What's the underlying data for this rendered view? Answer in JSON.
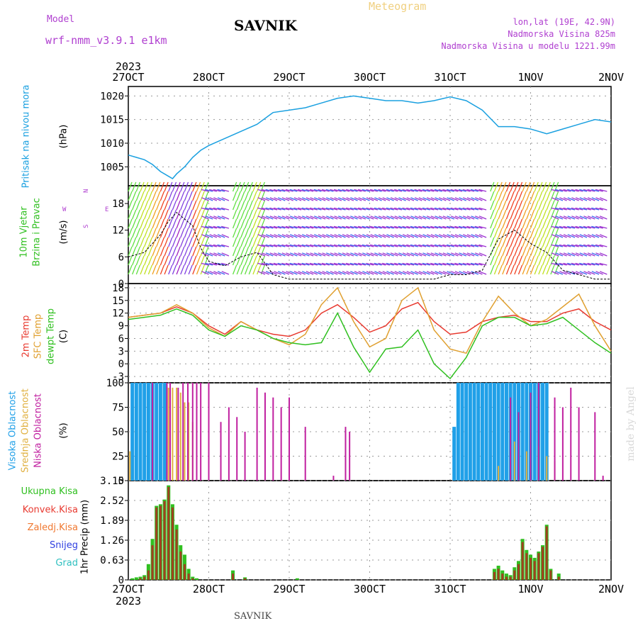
{
  "header": {
    "model_label": "Model",
    "model_name": "wrf-nmm_v3.9.1 e1km",
    "station": "SAVNIK",
    "meteogram": "Meteogram",
    "lonlat": "lon,lat (19E, 42.9N)",
    "altitude": "Nadmorska Visina 825m",
    "model_altitude": "Nadmorska Visina u modelu 1221.99m",
    "year_top": "2023",
    "year_bottom": "2023",
    "footer": "SAVNIK",
    "watermark": "made by Angel"
  },
  "colors": {
    "pressure": "#1aa0e0",
    "temp2m": "#e83a30",
    "sfc": "#e0a030",
    "dewpt": "#30c020",
    "high_cloud": "#20a0e8",
    "mid_cloud": "#e0b040",
    "low_cloud": "#c020a0",
    "precip_total": "#30c020",
    "precip_conv": "#a04020"
  },
  "chart_data": [
    {
      "type": "line",
      "panel": "pressure",
      "ylabel": [
        "Pritisak na nivou mora",
        "(hPa)"
      ],
      "x_ticks": [
        "27OCT",
        "28OCT",
        "29OCT",
        "30OCT",
        "31OCT",
        "1NOV",
        "2NOV"
      ],
      "ylim": [
        1001,
        1022
      ],
      "y_ticks": [
        "1005",
        "1010",
        "1015",
        "1020"
      ],
      "x_days": [
        0,
        0.1,
        0.2,
        0.3,
        0.4,
        0.5,
        0.55,
        0.6,
        0.7,
        0.8,
        0.9,
        1.0,
        1.2,
        1.4,
        1.6,
        1.8,
        2.0,
        2.2,
        2.4,
        2.6,
        2.8,
        3.0,
        3.2,
        3.4,
        3.6,
        3.8,
        4.0,
        4.2,
        4.4,
        4.6,
        4.8,
        5.0,
        5.1,
        5.2,
        5.4,
        5.6,
        5.8,
        6.0
      ],
      "series": [
        {
          "values": [
            1007.5,
            1007,
            1006.5,
            1005.5,
            1004,
            1003,
            1002.5,
            1003.5,
            1005,
            1007,
            1008.5,
            1009.5,
            1011,
            1012.5,
            1014,
            1016.5,
            1017,
            1017.5,
            1018.5,
            1019.5,
            1020,
            1019.5,
            1019,
            1019,
            1018.5,
            1019,
            1019.8,
            1019,
            1017,
            1013.5,
            1013.5,
            1013,
            1012.5,
            1012,
            1013,
            1014,
            1015,
            1014.5
          ]
        }
      ],
      "grid": true
    },
    {
      "type": "line",
      "panel": "wind",
      "ylabel": [
        "10m Vjetar",
        "Brzina i Pravac",
        "(m/s)"
      ],
      "compass": {
        "n": "N",
        "e": "E",
        "w": "W",
        "s": "S"
      },
      "ylim": [
        0,
        22
      ],
      "y_ticks": [
        "0",
        "6",
        "12",
        "18"
      ],
      "x_days": [
        0,
        0.2,
        0.4,
        0.5,
        0.6,
        0.8,
        0.9,
        1.0,
        1.2,
        1.4,
        1.6,
        1.8,
        2.0,
        2.2,
        2.4,
        2.6,
        2.8,
        3.0,
        3.2,
        3.4,
        3.6,
        3.8,
        4.0,
        4.2,
        4.4,
        4.6,
        4.8,
        5.0,
        5.2,
        5.4,
        5.6,
        5.8,
        6.0
      ],
      "series": [
        {
          "values": [
            6,
            7,
            11,
            14,
            16,
            13,
            8,
            5,
            4,
            6,
            7,
            2,
            1,
            1,
            1,
            1,
            1,
            1,
            1,
            1,
            1,
            1,
            2,
            2,
            3,
            10,
            12,
            9,
            7,
            3,
            2,
            1,
            1
          ]
        }
      ],
      "grid": true
    },
    {
      "type": "line",
      "panel": "temperature",
      "ylabel": [
        "2m Temp",
        "SFC Temp",
        "dewpt Temp",
        "(C)"
      ],
      "ylim": [
        -4.5,
        19
      ],
      "y_ticks": [
        "-3",
        "0",
        "3",
        "6",
        "9",
        "12",
        "15",
        "18"
      ],
      "x_days": [
        0,
        0.2,
        0.4,
        0.6,
        0.8,
        1.0,
        1.2,
        1.4,
        1.6,
        1.8,
        2.0,
        2.2,
        2.4,
        2.6,
        2.8,
        3.0,
        3.2,
        3.4,
        3.6,
        3.8,
        4.0,
        4.2,
        4.4,
        4.6,
        4.8,
        5.0,
        5.2,
        5.4,
        5.6,
        5.8,
        6.0
      ],
      "series": [
        {
          "name": "2m Temp",
          "values": [
            11,
            11.5,
            12,
            13.5,
            12,
            9,
            7,
            10,
            8,
            7,
            6.5,
            8,
            12,
            14,
            11,
            7.5,
            9,
            13,
            14.5,
            10,
            7,
            7.5,
            10,
            11,
            11.5,
            10,
            10,
            12,
            13,
            10,
            8
          ]
        },
        {
          "name": "SFC Temp",
          "values": [
            11,
            11.5,
            12,
            14,
            12,
            8.5,
            6.5,
            10,
            8,
            6,
            4.5,
            7,
            14,
            18,
            10,
            4,
            6,
            15,
            18,
            8,
            3.5,
            2.5,
            10,
            16,
            12,
            9,
            10.5,
            13.5,
            16.5,
            9,
            3
          ]
        },
        {
          "name": "dewpt Temp",
          "values": [
            10.5,
            11,
            11.5,
            13,
            11.5,
            8,
            6.5,
            9,
            8,
            6,
            5,
            4.5,
            5,
            12,
            4,
            -2,
            3.5,
            4,
            8,
            0,
            -3.5,
            1.5,
            9,
            11,
            11,
            9,
            9.5,
            11,
            8,
            5,
            2.5
          ]
        }
      ],
      "grid": true
    },
    {
      "type": "bar",
      "panel": "cloud",
      "ylabel": [
        "Visoka Oblacnost",
        "Srednja Oblacnost",
        "Niska Oblacnost",
        "(%)"
      ],
      "ylim": [
        0,
        100
      ],
      "y_ticks": [
        "0",
        "25",
        "50",
        "75",
        "100"
      ],
      "series": [
        {
          "name": "Visoka Oblacnost",
          "x_days": [
            0.05,
            0.1,
            0.15,
            0.2,
            0.25,
            0.3,
            0.35,
            0.4,
            0.45,
            4.05,
            4.1,
            4.15,
            4.2,
            4.25,
            4.3,
            4.35,
            4.4,
            4.45,
            4.5,
            4.55,
            4.6,
            4.65,
            4.7,
            4.75,
            4.8,
            4.85,
            4.9,
            4.95,
            5.0,
            5.05,
            5.1,
            5.15,
            5.2
          ],
          "values": [
            100,
            100,
            100,
            100,
            100,
            100,
            100,
            100,
            100,
            55,
            100,
            100,
            100,
            100,
            100,
            100,
            100,
            100,
            100,
            100,
            100,
            100,
            100,
            100,
            100,
            100,
            100,
            100,
            100,
            100,
            100,
            100,
            100
          ]
        },
        {
          "name": "Srednja Oblacnost",
          "x_days": [
            0.02,
            0.5,
            0.55,
            0.6,
            0.65,
            0.7,
            0.75,
            0.8,
            4.6,
            4.8,
            4.95,
            5.1,
            5.2,
            5.3
          ],
          "values": [
            30,
            95,
            95,
            95,
            90,
            80,
            80,
            60,
            15,
            40,
            30,
            35,
            25,
            20
          ]
        },
        {
          "name": "Niska Oblacnost",
          "x_days": [
            0.3,
            0.48,
            0.52,
            0.62,
            0.68,
            0.74,
            0.8,
            0.85,
            0.9,
            1.0,
            1.15,
            1.25,
            1.35,
            1.45,
            1.6,
            1.7,
            1.8,
            1.9,
            2.0,
            2.2,
            2.55,
            2.7,
            2.75,
            4.75,
            4.85,
            5.0,
            5.1,
            5.3,
            5.4,
            5.5,
            5.6,
            5.8,
            5.9,
            6.0
          ],
          "values": [
            100,
            100,
            100,
            95,
            100,
            100,
            100,
            100,
            100,
            100,
            60,
            75,
            65,
            50,
            95,
            90,
            85,
            75,
            85,
            55,
            5,
            55,
            50,
            85,
            70,
            90,
            100,
            85,
            75,
            95,
            75,
            70,
            5,
            0
          ]
        }
      ],
      "grid": true
    },
    {
      "type": "bar",
      "panel": "precip",
      "ylabel": "1hr Precip (mm)",
      "legend": [
        "Ukupna Kisa",
        "Konvek.Kisa",
        "Zaledj.Kisa",
        "Snijeg",
        "Grad"
      ],
      "legend_colors": [
        "#30c020",
        "#e83a30",
        "#f07830",
        "#3040e0",
        "#30c0c0"
      ],
      "ylim": [
        0,
        3.15
      ],
      "y_ticks": [
        "0",
        "0.63",
        "1.26",
        "1.89",
        "2.52",
        "3.15"
      ],
      "x_ticks": [
        "27OCT",
        "28OCT",
        "29OCT",
        "30OCT",
        "31OCT",
        "1NOV",
        "2NOV"
      ],
      "x_days": [
        0.05,
        0.1,
        0.15,
        0.2,
        0.25,
        0.3,
        0.35,
        0.4,
        0.45,
        0.5,
        0.55,
        0.6,
        0.65,
        0.7,
        0.75,
        0.8,
        0.85,
        1.3,
        1.45,
        2.1,
        4.55,
        4.6,
        4.65,
        4.7,
        4.75,
        4.8,
        4.85,
        4.9,
        4.95,
        5.0,
        5.05,
        5.1,
        5.15,
        5.2,
        5.25,
        5.35
      ],
      "series": [
        {
          "name": "Ukupna Kisa",
          "values": [
            0.05,
            0.08,
            0.1,
            0.15,
            0.5,
            1.3,
            2.35,
            2.4,
            2.55,
            3.0,
            2.4,
            1.75,
            1.1,
            0.8,
            0.35,
            0.1,
            0.05,
            0.3,
            0.08,
            0.05,
            0.35,
            0.45,
            0.3,
            0.2,
            0.15,
            0.4,
            0.6,
            1.3,
            0.95,
            0.8,
            0.7,
            0.9,
            1.1,
            1.75,
            0.35,
            0.2
          ]
        },
        {
          "name": "Konvek.Kisa",
          "values": [
            0,
            0,
            0.05,
            0.1,
            0.3,
            1.1,
            2.3,
            2.35,
            2.5,
            2.95,
            2.3,
            1.6,
            0.9,
            0.5,
            0.2,
            0.05,
            0,
            0.2,
            0.05,
            0,
            0.25,
            0.35,
            0.2,
            0.1,
            0.1,
            0.3,
            0.5,
            1.2,
            0.85,
            0.7,
            0.6,
            0.85,
            1.05,
            1.7,
            0.3,
            0.1
          ]
        }
      ],
      "grid": true
    }
  ]
}
